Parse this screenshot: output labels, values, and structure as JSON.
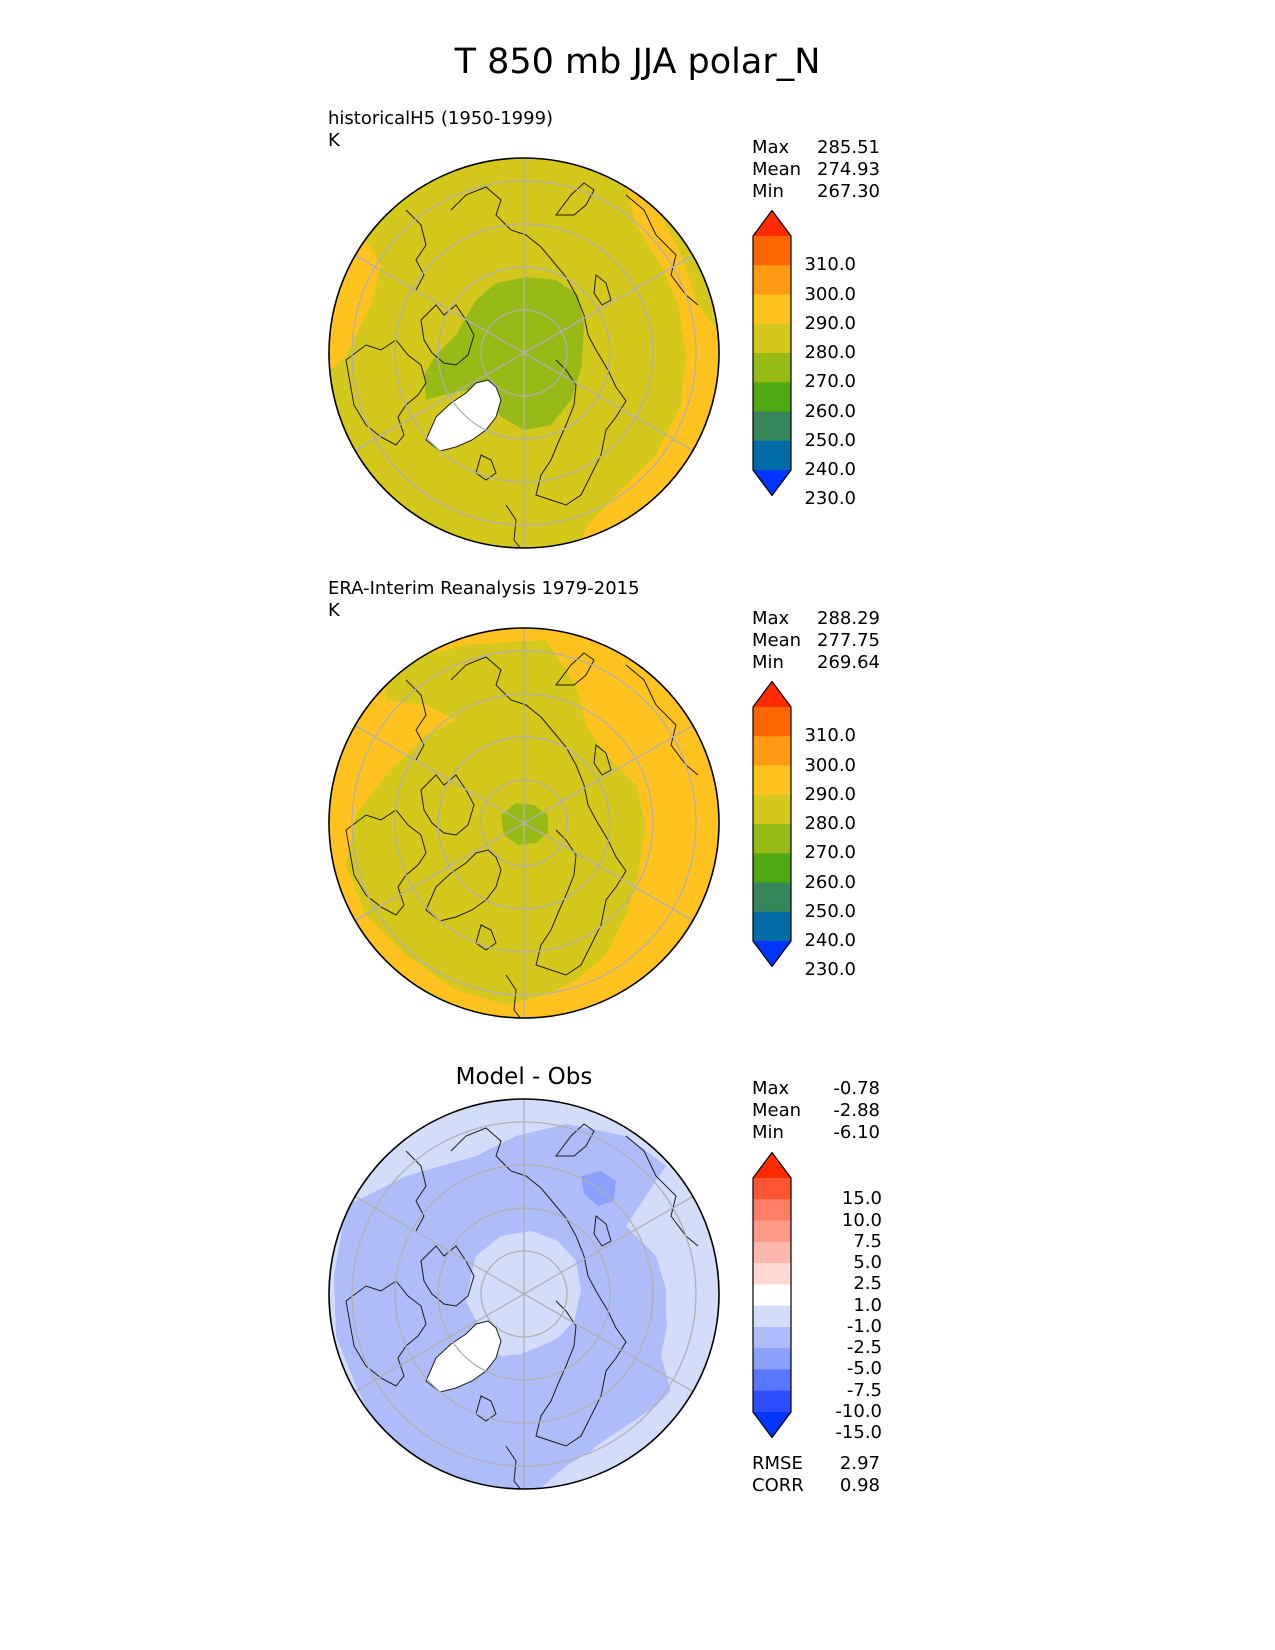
{
  "title": "T 850 mb JJA polar_N",
  "panels": [
    {
      "id": "model",
      "label_line1": "historicalH5 (1950-1999)",
      "label_line2": "K",
      "title": "",
      "stats": [
        {
          "name": "Max",
          "value": "285.51"
        },
        {
          "name": "Mean",
          "value": "274.93"
        },
        {
          "name": "Min",
          "value": "267.30"
        }
      ]
    },
    {
      "id": "obs",
      "label_line1": "ERA-Interim Reanalysis 1979-2015",
      "label_line2": "K",
      "title": "",
      "stats": [
        {
          "name": "Max",
          "value": "288.29"
        },
        {
          "name": "Mean",
          "value": "277.75"
        },
        {
          "name": "Min",
          "value": "269.64"
        }
      ]
    },
    {
      "id": "diff",
      "label_line1": "",
      "label_line2": "",
      "title": "Model - Obs",
      "stats": [
        {
          "name": "Max",
          "value": "-0.78"
        },
        {
          "name": "Mean",
          "value": "-2.88"
        },
        {
          "name": "Min",
          "value": "-6.10"
        }
      ],
      "extra_stats": [
        {
          "name": "RMSE",
          "value": "2.97"
        },
        {
          "name": "CORR",
          "value": "0.98"
        }
      ]
    }
  ],
  "colorbars": {
    "absolute": {
      "labels": [
        "310.0",
        "300.0",
        "290.0",
        "280.0",
        "270.0",
        "260.0",
        "250.0",
        "240.0",
        "230.0"
      ],
      "colors": [
        "#ff2a00",
        "#ff6600",
        "#ff9a12",
        "#ffc21f",
        "#d4c81d",
        "#98ba16",
        "#4ea912",
        "#378659",
        "#006ca6",
        "#0034ff"
      ]
    },
    "difference": {
      "labels": [
        "15.0",
        "10.0",
        "7.5",
        "5.0",
        "2.5",
        "1.0",
        "-1.0",
        "-2.5",
        "-5.0",
        "-7.5",
        "-10.0",
        "-15.0"
      ],
      "colors": [
        "#ff2a00",
        "#ff5533",
        "#ff7f66",
        "#ff9a88",
        "#ffb8ac",
        "#ffd8d2",
        "#ffffff",
        "#d3ddfa",
        "#aebdfa",
        "#8aa0fb",
        "#5977fd",
        "#2b4dff",
        "#0034ff"
      ]
    }
  }
}
